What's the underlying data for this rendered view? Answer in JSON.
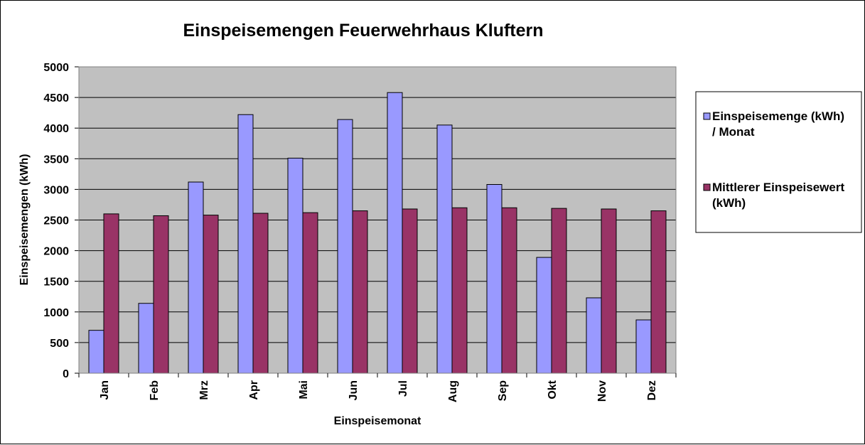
{
  "chart_data": {
    "type": "bar",
    "title": "Einspeisemengen Feuerwehrhaus Kluftern",
    "xlabel": "Einspeisemonat",
    "ylabel": "Einspeisemengen (kWh)",
    "ylim": [
      0,
      5000
    ],
    "yticks": [
      0,
      500,
      1000,
      1500,
      2000,
      2500,
      3000,
      3500,
      4000,
      4500,
      5000
    ],
    "categories": [
      "Jan",
      "Feb",
      "Mrz",
      "Apr",
      "Mai",
      "Jun",
      "Jul",
      "Aug",
      "Sep",
      "Okt",
      "Nov",
      "Dez"
    ],
    "series": [
      {
        "name_lines": [
          "Einspeisemenge (kWh)",
          "/ Monat"
        ],
        "color": "#9999ff",
        "values": [
          700,
          1140,
          3120,
          4220,
          3510,
          4140,
          4580,
          4050,
          3080,
          1890,
          1230,
          870
        ]
      },
      {
        "name_lines": [
          "Mittlerer Einspeisewert",
          "(kWh)"
        ],
        "color": "#993366",
        "values": [
          2600,
          2570,
          2580,
          2610,
          2620,
          2650,
          2680,
          2700,
          2700,
          2690,
          2680,
          2650
        ]
      }
    ],
    "grid": true,
    "plot_background": "#c0c0c0",
    "legend_position": "right"
  }
}
